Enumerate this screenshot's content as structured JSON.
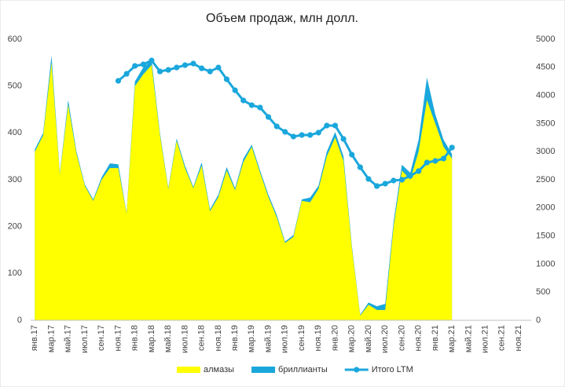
{
  "chart_data": {
    "type": "stacked-area-line",
    "title": "Объем продаж, млн долл.",
    "categories": [
      "янв.17",
      null,
      "мар.17",
      null,
      "май.17",
      null,
      "июл.17",
      null,
      "сен.17",
      null,
      "ноя.17",
      null,
      "янв.18",
      null,
      "мар.18",
      null,
      "май.18",
      null,
      "июл.18",
      null,
      "сен.18",
      null,
      "ноя.18",
      null,
      "янв.19",
      null,
      "мар.19",
      null,
      "май.19",
      null,
      "июл.19",
      null,
      "сен.19",
      null,
      "ноя.19",
      null,
      "янв.20",
      null,
      "мар.20",
      null,
      "май.20",
      null,
      "июл.20",
      null,
      "сен.20",
      null,
      "ноя.20",
      null,
      "янв.21",
      null,
      "мар.21",
      null,
      "май.21",
      null,
      "июл.21",
      null,
      "сен.21",
      null,
      "ноя.21",
      null
    ],
    "series": [
      {
        "name": "алмазы",
        "color": "#ffff00",
        "values": [
          360,
          395,
          550,
          312,
          460,
          355,
          287,
          255,
          300,
          325,
          325,
          228,
          500,
          525,
          545,
          395,
          280,
          383,
          325,
          282,
          330,
          233,
          263,
          320,
          278,
          338,
          370,
          315,
          263,
          220,
          165,
          178,
          255,
          252,
          280,
          350,
          390,
          340,
          155,
          10,
          33,
          22,
          22,
          200,
          320,
          300,
          360,
          470,
          420,
          370,
          345,
          null,
          null,
          null,
          null,
          null,
          null,
          null,
          null,
          null
        ]
      },
      {
        "name": "бриллианты",
        "color": "#1aa7dc",
        "values": [
          5,
          5,
          15,
          3,
          10,
          5,
          3,
          3,
          5,
          10,
          8,
          2,
          10,
          15,
          10,
          5,
          3,
          5,
          5,
          3,
          7,
          4,
          5,
          7,
          4,
          7,
          5,
          5,
          5,
          5,
          3,
          4,
          3,
          10,
          7,
          10,
          12,
          10,
          5,
          2,
          5,
          8,
          13,
          10,
          12,
          15,
          25,
          48,
          20,
          15,
          10,
          null,
          null,
          null,
          null,
          null,
          null,
          null,
          null,
          null
        ]
      },
      {
        "name": "Итого LTM",
        "color": "#1aa7dc",
        "axis": "y2",
        "values": [
          null,
          null,
          null,
          null,
          null,
          null,
          null,
          null,
          null,
          null,
          4260,
          4385,
          4525,
          4553,
          4623,
          4427,
          4455,
          4497,
          4539,
          4567,
          4483,
          4427,
          4497,
          4288,
          4092,
          3911,
          3827,
          3785,
          3617,
          3450,
          3352,
          3268,
          3296,
          3296,
          3338,
          3464,
          3464,
          3226,
          2947,
          2723,
          2514,
          2388,
          2430,
          2486,
          2500,
          2570,
          2654,
          2807,
          2835,
          2877,
          3073,
          null,
          null,
          null,
          null,
          null,
          null,
          null,
          null,
          null
        ]
      }
    ],
    "ylim": [
      0,
      600
    ],
    "yticks": [
      0,
      100,
      200,
      300,
      400,
      500,
      600
    ],
    "y2lim": [
      0,
      5000
    ],
    "y2ticks": [
      0,
      500,
      1000,
      1500,
      2000,
      2500,
      3000,
      3500,
      4000,
      4500,
      5000
    ],
    "legend": "bottom"
  }
}
